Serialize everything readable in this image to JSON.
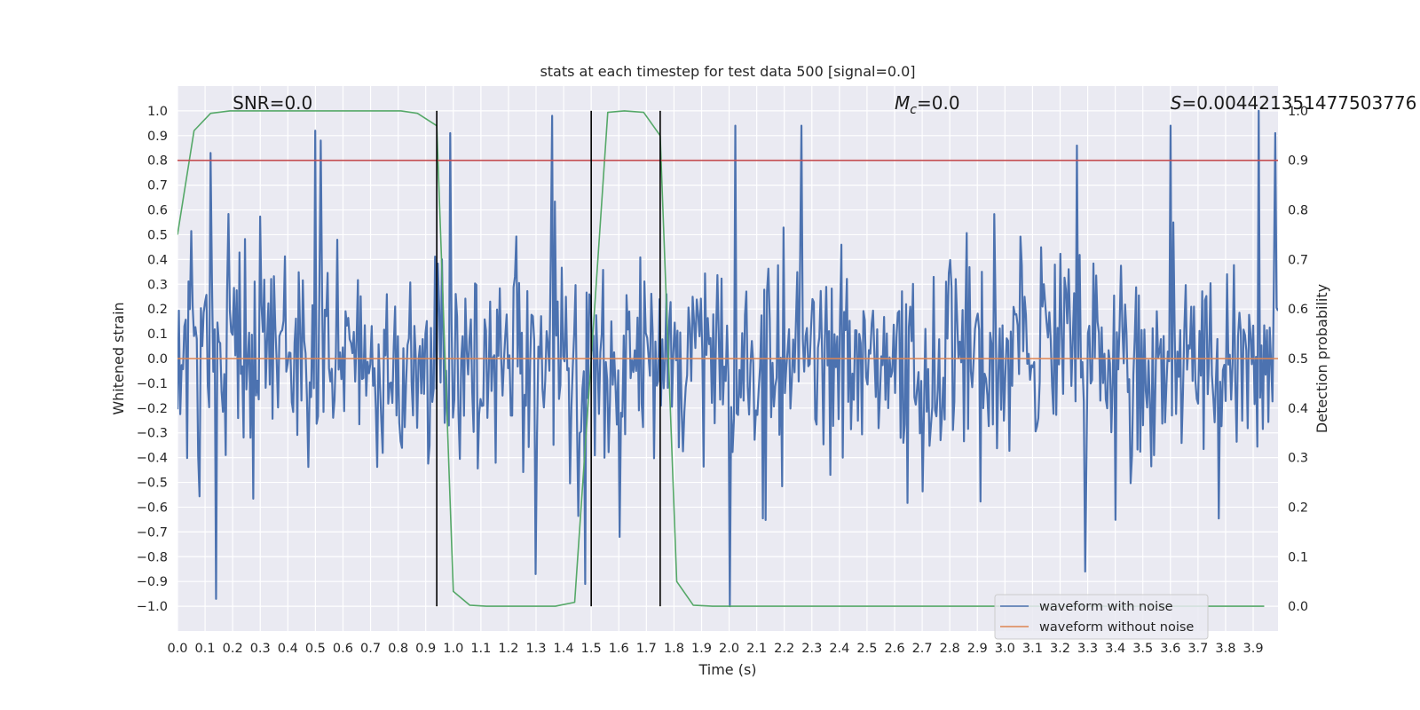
{
  "chart_data": {
    "type": "line",
    "title": "stats at each timestep for test data 500 [signal=0.0]",
    "xlabel": "Time (s)",
    "ylabel_left": "Whitened strain",
    "ylabel_right": "Detection probability",
    "xlim": [
      0.0,
      3.99
    ],
    "ylim_left": [
      -1.1,
      1.1
    ],
    "ylim_right": [
      -0.05,
      1.05
    ],
    "x_ticks": [
      0.0,
      0.1,
      0.2,
      0.3,
      0.4,
      0.5,
      0.6,
      0.7,
      0.8,
      0.9,
      1.0,
      1.1,
      1.2,
      1.3,
      1.4,
      1.5,
      1.6,
      1.7,
      1.8,
      1.9,
      2.0,
      2.1,
      2.2,
      2.3,
      2.4,
      2.5,
      2.6,
      2.7,
      2.8,
      2.9,
      3.0,
      3.1,
      3.2,
      3.3,
      3.4,
      3.5,
      3.6,
      3.7,
      3.8,
      3.9
    ],
    "x_tick_labels": [
      "0.0",
      "0.1",
      "0.2",
      "0.3",
      "0.4",
      "0.5",
      "0.6",
      "0.7",
      "0.8",
      "0.9",
      "1.0",
      "1.1",
      "1.2",
      "1.3",
      "1.4",
      "1.5",
      "1.6",
      "1.7",
      "1.8",
      "1.9",
      "2.0",
      "2.1",
      "2.2",
      "2.3",
      "2.4",
      "2.5",
      "2.6",
      "2.7",
      "2.8",
      "2.9",
      "3.0",
      "3.1",
      "3.2",
      "3.3",
      "3.4",
      "3.5",
      "3.6",
      "3.7",
      "3.8",
      "3.9"
    ],
    "y_left_ticks": [
      1.0,
      0.9,
      0.8,
      0.7,
      0.6,
      0.5,
      0.4,
      0.3,
      0.2,
      0.1,
      0.0,
      -0.1,
      -0.2,
      -0.3,
      -0.4,
      -0.5,
      -0.6,
      -0.7,
      -0.8,
      -0.9,
      -1.0
    ],
    "y_left_tick_labels": [
      "1.0",
      "0.9",
      "0.8",
      "0.7",
      "0.6",
      "0.5",
      "0.4",
      "0.3",
      "0.2",
      "0.1",
      "0.0",
      "−0.1",
      "−0.2",
      "−0.3",
      "−0.4",
      "−0.5",
      "−0.6",
      "−0.7",
      "−0.8",
      "−0.9",
      "−1.0"
    ],
    "y_right_ticks": [
      1.0,
      0.9,
      0.8,
      0.7,
      0.6,
      0.5,
      0.4,
      0.3,
      0.2,
      0.1,
      0.0
    ],
    "y_right_tick_labels": [
      "1.0",
      "0.9",
      "0.8",
      "0.7",
      "0.6",
      "0.5",
      "0.4",
      "0.3",
      "0.2",
      "0.1",
      "0.0"
    ],
    "grid": true,
    "legend_position": "lower-right",
    "series": [
      {
        "name": "waveform with noise",
        "axis": "left",
        "color": "#4c72b0",
        "kind": "noise",
        "sample_count": 800,
        "typical_abs_max": 0.55,
        "spikes": [
          {
            "x": 0.12,
            "y": 0.83
          },
          {
            "x": 0.14,
            "y": -0.97
          },
          {
            "x": 0.5,
            "y": 0.92
          },
          {
            "x": 0.52,
            "y": 0.88
          },
          {
            "x": 0.99,
            "y": 0.91
          },
          {
            "x": 1.3,
            "y": -0.87
          },
          {
            "x": 1.36,
            "y": 0.98
          },
          {
            "x": 1.48,
            "y": -0.91
          },
          {
            "x": 2.0,
            "y": -1.0
          },
          {
            "x": 2.02,
            "y": 0.94
          },
          {
            "x": 2.26,
            "y": 0.94
          },
          {
            "x": 3.26,
            "y": 0.86
          },
          {
            "x": 3.29,
            "y": -0.86
          },
          {
            "x": 3.6,
            "y": 0.94
          },
          {
            "x": 3.92,
            "y": 1.0
          },
          {
            "x": 3.98,
            "y": 0.91
          }
        ]
      },
      {
        "name": "waveform without noise",
        "axis": "left",
        "color": "#dd8452",
        "x": [
          0.0,
          3.99
        ],
        "y": [
          0.0,
          0.0
        ]
      },
      {
        "name": "detection probability",
        "axis": "right",
        "color": "#55a868",
        "legend": false,
        "x": [
          0.0,
          0.06,
          0.12,
          0.19,
          0.25,
          0.31,
          0.37,
          0.44,
          0.5,
          0.56,
          0.62,
          0.69,
          0.75,
          0.81,
          0.87,
          0.94,
          1.0,
          1.06,
          1.12,
          1.19,
          1.25,
          1.31,
          1.37,
          1.44,
          1.5,
          1.56,
          1.62,
          1.69,
          1.75,
          1.81,
          1.87,
          1.94,
          2.0,
          3.94
        ],
        "y": [
          0.75,
          0.96,
          0.995,
          1.0,
          1.0,
          1.0,
          1.0,
          1.0,
          1.0,
          1.0,
          1.0,
          1.0,
          1.0,
          1.0,
          0.995,
          0.97,
          0.03,
          0.002,
          0.0,
          0.0,
          0.0,
          0.0,
          0.0,
          0.008,
          0.5,
          0.997,
          1.0,
          0.997,
          0.95,
          0.05,
          0.002,
          0.0,
          0.0,
          0.0
        ]
      }
    ],
    "hlines": [
      {
        "axis": "right",
        "y": 0.9,
        "color": "#c44e52"
      }
    ],
    "vlines": [
      {
        "x": 0.94,
        "color": "#000000"
      },
      {
        "x": 1.5,
        "color": "#000000"
      },
      {
        "x": 1.75,
        "color": "#000000"
      }
    ],
    "annotations": [
      {
        "id": "snr",
        "text": "SNR=0.0"
      },
      {
        "id": "mc",
        "text": "M_c=0.0",
        "symbol": "M",
        "subscript": "c",
        "rest": "=0.0"
      },
      {
        "id": "s",
        "text": "S=0.004421351477503776",
        "symbol": "S",
        "rest": "=0.004421351477503776"
      }
    ]
  }
}
